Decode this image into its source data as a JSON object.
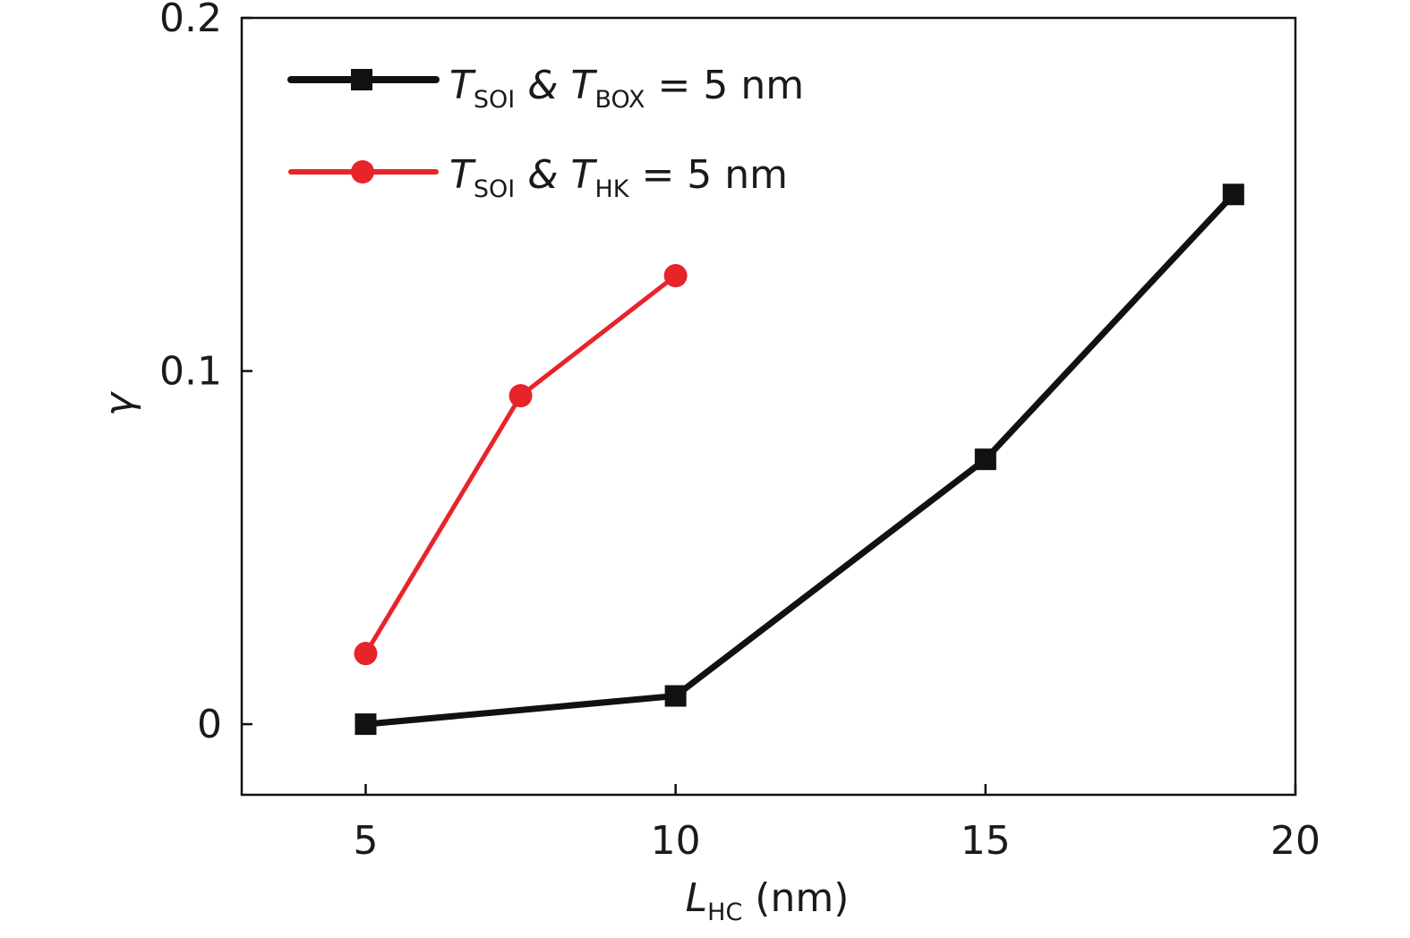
{
  "chart_data": {
    "type": "line",
    "xlabel": {
      "main": "L",
      "sub": "HC",
      "rest": " (nm)"
    },
    "ylabel": "γ",
    "xlim": [
      3,
      20
    ],
    "ylim": [
      -0.02,
      0.2
    ],
    "x_ticks": [
      "5",
      "10",
      "15",
      "20"
    ],
    "x_tick_values": [
      5,
      10,
      15,
      20
    ],
    "y_ticks": [
      "0",
      "0.1",
      "0.2"
    ],
    "y_tick_values": [
      0,
      0.1,
      0.2
    ],
    "grid": false,
    "legend_position": "top-left",
    "series": [
      {
        "name": "TSOI & TBOX = 5 nm",
        "label_parts": {
          "t1": "T",
          "s1": "SOI",
          "mid": " & ",
          "t2": "T",
          "s2": "BOX",
          "end": " = 5 nm"
        },
        "color": "#111111",
        "marker": "square",
        "x": [
          5,
          10,
          15,
          19
        ],
        "y": [
          0.0,
          0.008,
          0.075,
          0.15
        ]
      },
      {
        "name": "TSOI & THK = 5 nm",
        "label_parts": {
          "t1": "T",
          "s1": "SOI",
          "mid": " & ",
          "t2": "T",
          "s2": "HK",
          "end": " = 5 nm"
        },
        "color": "#e8242b",
        "marker": "circle",
        "x": [
          5,
          7.5,
          10
        ],
        "y": [
          0.02,
          0.093,
          0.127
        ]
      }
    ]
  }
}
